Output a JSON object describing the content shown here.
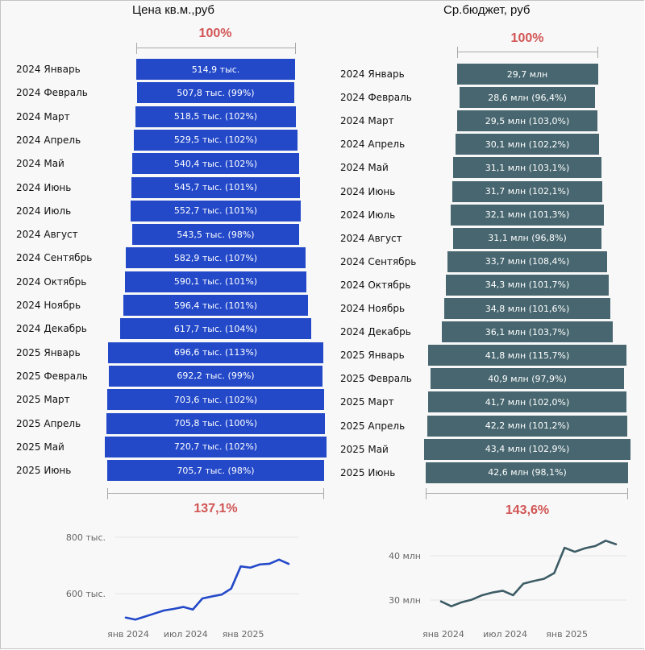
{
  "chart_data": [
    {
      "type": "bar",
      "subtype": "funnel",
      "title": "Цена кв.м.,руб",
      "color": "#2349c9",
      "top_percent_label": "100%",
      "bottom_percent_label": "137,1%",
      "categories": [
        "2024 Январь",
        "2024 Февраль",
        "2024 Март",
        "2024 Апрель",
        "2024 Май",
        "2024 Июнь",
        "2024 Июль",
        "2024 Август",
        "2024 Сентябрь",
        "2024 Октябрь",
        "2024 Ноябрь",
        "2024 Декабрь",
        "2025 Январь",
        "2025 Февраль",
        "2025 Март",
        "2025 Апрель",
        "2025 Май",
        "2025 Июнь"
      ],
      "values": [
        514.9,
        507.8,
        518.5,
        529.5,
        540.4,
        545.7,
        552.7,
        543.5,
        582.9,
        590.1,
        596.4,
        617.7,
        696.6,
        692.2,
        703.6,
        705.8,
        720.7,
        705.7
      ],
      "unit": "тыс.",
      "bar_labels": [
        "514,9 тыс.",
        "507,8 тыс. (99%)",
        "518,5 тыс. (102%)",
        "529,5 тыс. (102%)",
        "540,4 тыс. (102%)",
        "545,7 тыс. (101%)",
        "552,7 тыс. (101%)",
        "543,5 тыс. (98%)",
        "582,9 тыс. (107%)",
        "590,1 тыс. (101%)",
        "596,4 тыс. (101%)",
        "617,7 тыс. (104%)",
        "696,6 тыс. (113%)",
        "692,2 тыс. (99%)",
        "703,6 тыс. (102%)",
        "705,8 тыс. (100%)",
        "720,7 тыс. (102%)",
        "705,7 тыс. (98%)"
      ]
    },
    {
      "type": "bar",
      "subtype": "funnel",
      "title": "Ср.бюджет, руб",
      "color": "#47666f",
      "top_percent_label": "100%",
      "bottom_percent_label": "143,6%",
      "categories": [
        "2024 Январь",
        "2024 Февраль",
        "2024 Март",
        "2024 Апрель",
        "2024 Май",
        "2024 Июнь",
        "2024 Июль",
        "2024 Август",
        "2024 Сентябрь",
        "2024 Октябрь",
        "2024 Ноябрь",
        "2024 Декабрь",
        "2025 Январь",
        "2025 Февраль",
        "2025 Март",
        "2025 Апрель",
        "2025 Май",
        "2025 Июнь"
      ],
      "values": [
        29.7,
        28.6,
        29.5,
        30.1,
        31.1,
        31.7,
        32.1,
        31.1,
        33.7,
        34.3,
        34.8,
        36.1,
        41.8,
        40.9,
        41.7,
        42.2,
        43.4,
        42.6
      ],
      "unit": "млн",
      "bar_labels": [
        "29,7 млн",
        "28,6 млн (96,4%)",
        "29,5 млн (103,0%)",
        "30,1 млн (102,2%)",
        "31,1 млн (103,1%)",
        "31,7 млн (102,1%)",
        "32,1 млн (101,3%)",
        "31,1 млн (96,8%)",
        "33,7 млн (108,4%)",
        "34,3 млн (101,7%)",
        "34,8 млн (101,6%)",
        "36,1 млн (103,7%)",
        "41,8 млн (115,7%)",
        "40,9 млн (97,9%)",
        "41,7 млн (102,0%)",
        "42,2 млн (101,2%)",
        "43,4 млн (102,9%)",
        "42,6 млн (98,1%)"
      ]
    },
    {
      "type": "line",
      "title": "",
      "color": "#2349c9",
      "x": [
        "2024-01",
        "2024-02",
        "2024-03",
        "2024-04",
        "2024-05",
        "2024-06",
        "2024-07",
        "2024-08",
        "2024-09",
        "2024-10",
        "2024-11",
        "2024-12",
        "2025-01",
        "2025-02",
        "2025-03",
        "2025-04",
        "2025-05",
        "2025-06"
      ],
      "values": [
        514.9,
        507.8,
        518.5,
        529.5,
        540.4,
        545.7,
        552.7,
        543.5,
        582.9,
        590.1,
        596.4,
        617.7,
        696.6,
        692.2,
        703.6,
        705.8,
        720.7,
        705.7
      ],
      "y_ticks": [
        {
          "value": 600,
          "label": "600 тыс."
        },
        {
          "value": 800,
          "label": "800 тыс."
        }
      ],
      "x_ticks": [
        {
          "index": 0,
          "label": "янв 2024"
        },
        {
          "index": 6,
          "label": "июл 2024"
        },
        {
          "index": 12,
          "label": "янв 2025"
        }
      ],
      "grid": true,
      "xlabel": "",
      "ylabel": ""
    },
    {
      "type": "line",
      "title": "",
      "color": "#3d5c66",
      "x": [
        "2024-01",
        "2024-02",
        "2024-03",
        "2024-04",
        "2024-05",
        "2024-06",
        "2024-07",
        "2024-08",
        "2024-09",
        "2024-10",
        "2024-11",
        "2024-12",
        "2025-01",
        "2025-02",
        "2025-03",
        "2025-04",
        "2025-05",
        "2025-06"
      ],
      "values": [
        29.7,
        28.6,
        29.5,
        30.1,
        31.1,
        31.7,
        32.1,
        31.1,
        33.7,
        34.3,
        34.8,
        36.1,
        41.8,
        40.9,
        41.7,
        42.2,
        43.4,
        42.6
      ],
      "y_ticks": [
        {
          "value": 30,
          "label": "30 млн"
        },
        {
          "value": 40,
          "label": "40 млн"
        }
      ],
      "x_ticks": [
        {
          "index": 0,
          "label": "янв 2024"
        },
        {
          "index": 6,
          "label": "июл 2024"
        },
        {
          "index": 12,
          "label": "янв 2025"
        }
      ],
      "grid": true,
      "xlabel": "",
      "ylabel": ""
    }
  ]
}
